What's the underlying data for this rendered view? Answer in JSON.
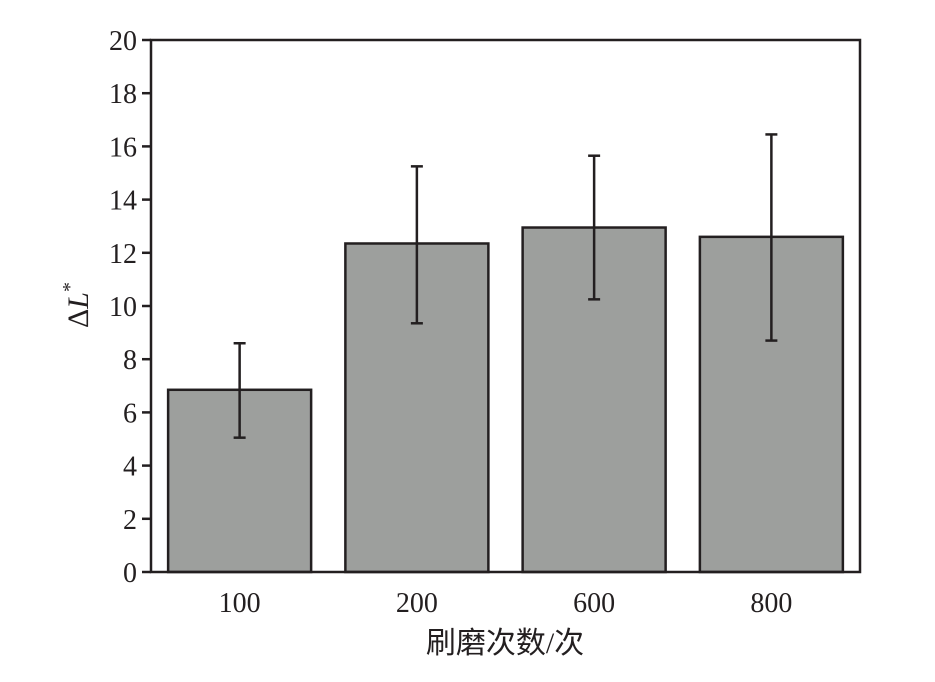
{
  "chart_data": {
    "type": "bar",
    "categories": [
      "100",
      "200",
      "600",
      "800"
    ],
    "values": [
      6.85,
      12.35,
      12.95,
      12.6
    ],
    "error_bars": {
      "lower": [
        5.05,
        9.35,
        10.25,
        8.7
      ],
      "upper": [
        8.6,
        15.25,
        15.65,
        16.45
      ]
    },
    "ylim": [
      0,
      20
    ],
    "yticks": [
      "0",
      "2",
      "4",
      "6",
      "8",
      "10",
      "12",
      "14",
      "16",
      "18",
      "20"
    ],
    "xlabel": "刷磨次数/次",
    "ylabel": {
      "prefix": "Δ",
      "main": "L",
      "superscript": "*"
    },
    "grid": false,
    "legend": "none",
    "colors": {
      "bar": "#9d9f9d",
      "stroke": "#231f20"
    }
  }
}
